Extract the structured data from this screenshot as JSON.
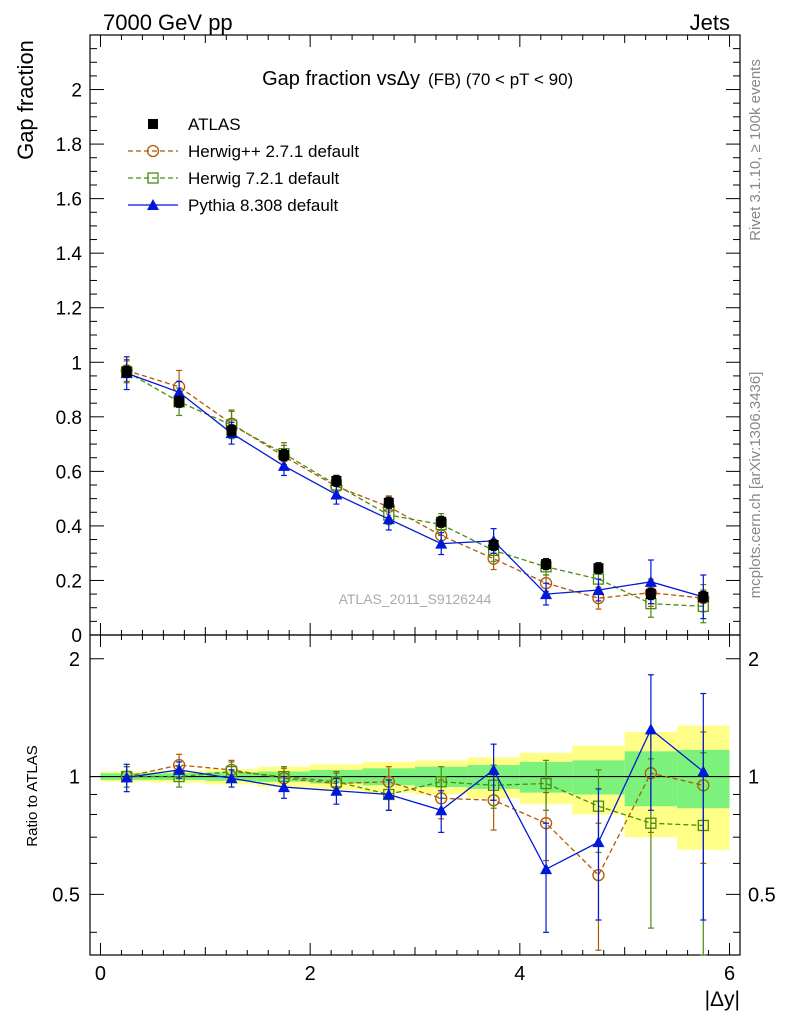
{
  "header": {
    "energy_label": "7000 GeV pp",
    "category_label": "Jets"
  },
  "side_labels": {
    "rivet": "Rivet 3.1.10, ≥ 100k events",
    "mcplots": "mcplots.cern.ch [arXiv:1306.3436]"
  },
  "chart_data": [
    {
      "type": "line",
      "title_main": "Gap fraction vsΔy",
      "title_suffix": "(FB)  (70 < pT <  90)",
      "ylabel": "Gap fraction",
      "xlabel": "",
      "watermark": "ATLAS_2011_S9126244",
      "xlim": [
        -0.1,
        6.1
      ],
      "ylim": [
        0,
        2.2
      ],
      "yticks": [
        0,
        0.2,
        0.4,
        0.6,
        0.8,
        1,
        1.2,
        1.4,
        1.6,
        1.8,
        2
      ],
      "ytick_labels": [
        "0",
        "0.2",
        "0.4",
        "0.6",
        "0.8",
        "1",
        "1.2",
        "1.4",
        "1.6",
        "1.8",
        "2"
      ],
      "x": [
        0.25,
        0.75,
        1.25,
        1.75,
        2.25,
        2.75,
        3.25,
        3.75,
        4.25,
        4.75,
        5.25,
        5.75
      ],
      "series": [
        {
          "name": "ATLAS",
          "color": "#000000",
          "marker": "square-filled",
          "style": "none",
          "values": [
            0.965,
            0.855,
            0.75,
            0.66,
            0.565,
            0.485,
            0.415,
            0.33,
            0.26,
            0.245,
            0.15,
            0.14
          ],
          "err": [
            0.02,
            0.02,
            0.02,
            0.02,
            0.02,
            0.02,
            0.02,
            0.02,
            0.02,
            0.02,
            0.02,
            0.02
          ]
        },
        {
          "name": "Herwig++ 2.7.1 default",
          "color": "#b05a00",
          "marker": "circle-open",
          "style": "dashed",
          "values": [
            0.97,
            0.91,
            0.775,
            0.655,
            0.545,
            0.47,
            0.365,
            0.28,
            0.19,
            0.135,
            0.155,
            0.135
          ],
          "err": [
            0.04,
            0.06,
            0.05,
            0.04,
            0.035,
            0.04,
            0.04,
            0.04,
            0.03,
            0.04,
            0.05,
            0.05
          ]
        },
        {
          "name": "Herwig 7.2.1 default",
          "color": "#4a8a10",
          "marker": "square-open",
          "style": "dashed",
          "values": [
            0.965,
            0.855,
            0.77,
            0.665,
            0.55,
            0.44,
            0.405,
            0.31,
            0.25,
            0.205,
            0.115,
            0.105
          ],
          "err": [
            0.04,
            0.05,
            0.05,
            0.04,
            0.035,
            0.035,
            0.04,
            0.04,
            0.03,
            0.04,
            0.05,
            0.06
          ]
        },
        {
          "name": "Pythia 8.308 default",
          "color": "#0018d8",
          "marker": "triangle-filled",
          "style": "solid",
          "values": [
            0.96,
            0.89,
            0.74,
            0.62,
            0.515,
            0.425,
            0.335,
            0.345,
            0.15,
            0.165,
            0.195,
            0.14
          ],
          "err": [
            0.06,
            0.04,
            0.04,
            0.035,
            0.035,
            0.04,
            0.04,
            0.045,
            0.04,
            0.04,
            0.08,
            0.08
          ]
        }
      ]
    },
    {
      "type": "line",
      "ylabel": "Ratio to ATLAS",
      "xlabel": "|Δy|",
      "xlim": [
        -0.1,
        6.1
      ],
      "ylim": [
        0.35,
        2.3
      ],
      "yscale": "log",
      "xticks": [
        0,
        2,
        4,
        6
      ],
      "xtick_labels": [
        "0",
        "2",
        "4",
        "6"
      ],
      "yticks": [
        0.5,
        1,
        2
      ],
      "ytick_labels": [
        "0.5",
        "1",
        "2"
      ],
      "x": [
        0.25,
        0.75,
        1.25,
        1.75,
        2.25,
        2.75,
        3.25,
        3.75,
        4.25,
        4.75,
        5.25,
        5.75
      ],
      "bands": {
        "inner_color": "#7cf27c",
        "outer_color": "#ffff88",
        "inner": [
          0.02,
          0.02,
          0.025,
          0.03,
          0.04,
          0.05,
          0.06,
          0.07,
          0.09,
          0.1,
          0.16,
          0.17
        ],
        "outer": [
          0.03,
          0.035,
          0.045,
          0.06,
          0.075,
          0.09,
          0.1,
          0.12,
          0.15,
          0.2,
          0.3,
          0.35
        ]
      },
      "series": [
        {
          "name": "Herwig++ 2.7.1 default",
          "color": "#b05a00",
          "marker": "circle-open",
          "style": "dashed",
          "values": [
            1.0,
            1.07,
            1.04,
            0.99,
            0.96,
            0.97,
            0.88,
            0.87,
            0.76,
            0.56,
            1.02,
            0.95
          ],
          "err": [
            0.06,
            0.07,
            0.06,
            0.06,
            0.06,
            0.09,
            0.1,
            0.14,
            0.15,
            0.2,
            0.3,
            0.35
          ]
        },
        {
          "name": "Herwig 7.2.1 default",
          "color": "#4a8a10",
          "marker": "square-open",
          "style": "dashed",
          "values": [
            1.0,
            1.0,
            1.03,
            1.0,
            0.97,
            0.9,
            0.97,
            0.95,
            0.96,
            0.84,
            0.76,
            0.75
          ],
          "err": [
            0.06,
            0.06,
            0.06,
            0.06,
            0.06,
            0.08,
            0.09,
            0.12,
            0.14,
            0.2,
            0.35,
            0.4
          ]
        },
        {
          "name": "Pythia 8.308 default",
          "color": "#0018d8",
          "marker": "triangle-filled",
          "style": "solid",
          "values": [
            0.995,
            1.04,
            0.99,
            0.94,
            0.92,
            0.9,
            0.82,
            1.04,
            0.58,
            0.68,
            1.32,
            1.03
          ],
          "err": [
            0.08,
            0.05,
            0.05,
            0.06,
            0.07,
            0.08,
            0.1,
            0.17,
            0.18,
            0.25,
            0.5,
            0.6
          ]
        }
      ]
    }
  ]
}
